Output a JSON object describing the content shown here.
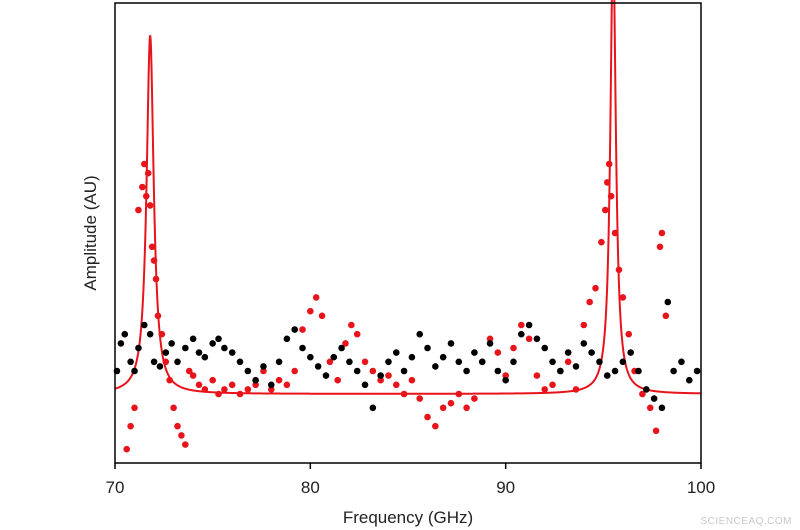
{
  "chart_data": {
    "type": "scatter",
    "title": "",
    "xlabel": "Frequency (GHz)",
    "ylabel": "Amplitude (AU)",
    "xlim": [
      70,
      100
    ],
    "ylim": [
      0,
      1
    ],
    "x_ticks": [
      70,
      80,
      90,
      100
    ],
    "x_tick_labels": [
      "70",
      "80",
      "90",
      "100"
    ],
    "y_ticks_shown": false,
    "grid": false,
    "legend": "none",
    "colors": {
      "red": "#e8141b",
      "black": "#000000",
      "frame": "#000000"
    },
    "series": [
      {
        "kind": "scatter",
        "color": "red",
        "points": [
          [
            70.6,
            0.03
          ],
          [
            70.8,
            0.08
          ],
          [
            71.0,
            0.12
          ],
          [
            71.2,
            0.55
          ],
          [
            71.4,
            0.6
          ],
          [
            71.5,
            0.65
          ],
          [
            71.6,
            0.58
          ],
          [
            71.7,
            0.63
          ],
          [
            71.8,
            0.56
          ],
          [
            71.9,
            0.47
          ],
          [
            72.0,
            0.44
          ],
          [
            72.1,
            0.4
          ],
          [
            72.2,
            0.32
          ],
          [
            72.4,
            0.28
          ],
          [
            72.6,
            0.22
          ],
          [
            72.8,
            0.18
          ],
          [
            73.0,
            0.12
          ],
          [
            73.2,
            0.08
          ],
          [
            73.4,
            0.06
          ],
          [
            73.6,
            0.04
          ],
          [
            73.8,
            0.2
          ],
          [
            74.0,
            0.19
          ],
          [
            74.3,
            0.17
          ],
          [
            74.6,
            0.16
          ],
          [
            75.0,
            0.18
          ],
          [
            75.3,
            0.15
          ],
          [
            75.6,
            0.16
          ],
          [
            76.0,
            0.17
          ],
          [
            76.4,
            0.15
          ],
          [
            76.8,
            0.16
          ],
          [
            77.2,
            0.17
          ],
          [
            77.6,
            0.2
          ],
          [
            78.0,
            0.16
          ],
          [
            78.4,
            0.18
          ],
          [
            78.8,
            0.17
          ],
          [
            79.2,
            0.2
          ],
          [
            79.6,
            0.29
          ],
          [
            80.0,
            0.33
          ],
          [
            80.3,
            0.36
          ],
          [
            80.6,
            0.32
          ],
          [
            81.0,
            0.22
          ],
          [
            81.4,
            0.18
          ],
          [
            81.8,
            0.26
          ],
          [
            82.1,
            0.3
          ],
          [
            82.4,
            0.28
          ],
          [
            82.8,
            0.22
          ],
          [
            83.2,
            0.2
          ],
          [
            83.6,
            0.18
          ],
          [
            84.0,
            0.19
          ],
          [
            84.4,
            0.17
          ],
          [
            84.8,
            0.15
          ],
          [
            85.2,
            0.18
          ],
          [
            85.6,
            0.14
          ],
          [
            86.0,
            0.1
          ],
          [
            86.4,
            0.08
          ],
          [
            86.8,
            0.12
          ],
          [
            87.2,
            0.13
          ],
          [
            87.6,
            0.15
          ],
          [
            88.0,
            0.12
          ],
          [
            88.4,
            0.14
          ],
          [
            88.8,
            0.22
          ],
          [
            89.2,
            0.27
          ],
          [
            89.6,
            0.24
          ],
          [
            90.0,
            0.19
          ],
          [
            90.4,
            0.25
          ],
          [
            90.8,
            0.3
          ],
          [
            91.2,
            0.27
          ],
          [
            91.6,
            0.19
          ],
          [
            92.0,
            0.16
          ],
          [
            92.4,
            0.17
          ],
          [
            92.8,
            0.2
          ],
          [
            93.2,
            0.22
          ],
          [
            93.6,
            0.16
          ],
          [
            94.0,
            0.3
          ],
          [
            94.3,
            0.35
          ],
          [
            94.6,
            0.38
          ],
          [
            94.9,
            0.48
          ],
          [
            95.1,
            0.55
          ],
          [
            95.2,
            0.61
          ],
          [
            95.3,
            0.65
          ],
          [
            95.4,
            0.58
          ],
          [
            95.6,
            0.5
          ],
          [
            95.8,
            0.42
          ],
          [
            96.0,
            0.36
          ],
          [
            96.3,
            0.28
          ],
          [
            96.6,
            0.2
          ],
          [
            97.0,
            0.15
          ],
          [
            97.4,
            0.12
          ],
          [
            97.7,
            0.07
          ],
          [
            97.9,
            0.47
          ],
          [
            98.0,
            0.5
          ],
          [
            98.2,
            0.32
          ]
        ]
      },
      {
        "kind": "scatter",
        "color": "black",
        "points": [
          [
            70.1,
            0.2
          ],
          [
            70.3,
            0.26
          ],
          [
            70.5,
            0.28
          ],
          [
            70.8,
            0.22
          ],
          [
            71.0,
            0.2
          ],
          [
            71.2,
            0.25
          ],
          [
            71.5,
            0.3
          ],
          [
            71.8,
            0.28
          ],
          [
            72.0,
            0.22
          ],
          [
            72.3,
            0.21
          ],
          [
            72.6,
            0.24
          ],
          [
            72.9,
            0.26
          ],
          [
            73.2,
            0.22
          ],
          [
            73.6,
            0.25
          ],
          [
            74.0,
            0.27
          ],
          [
            74.3,
            0.24
          ],
          [
            74.6,
            0.23
          ],
          [
            75.0,
            0.26
          ],
          [
            75.3,
            0.27
          ],
          [
            75.6,
            0.25
          ],
          [
            76.0,
            0.24
          ],
          [
            76.4,
            0.22
          ],
          [
            76.8,
            0.2
          ],
          [
            77.2,
            0.18
          ],
          [
            77.6,
            0.21
          ],
          [
            78.0,
            0.17
          ],
          [
            78.4,
            0.22
          ],
          [
            78.8,
            0.27
          ],
          [
            79.2,
            0.29
          ],
          [
            79.6,
            0.25
          ],
          [
            80.0,
            0.23
          ],
          [
            80.4,
            0.21
          ],
          [
            80.8,
            0.19
          ],
          [
            81.2,
            0.23
          ],
          [
            81.6,
            0.25
          ],
          [
            82.0,
            0.22
          ],
          [
            82.4,
            0.2
          ],
          [
            82.8,
            0.17
          ],
          [
            83.2,
            0.12
          ],
          [
            83.6,
            0.19
          ],
          [
            84.0,
            0.22
          ],
          [
            84.4,
            0.24
          ],
          [
            84.8,
            0.2
          ],
          [
            85.2,
            0.23
          ],
          [
            85.6,
            0.28
          ],
          [
            86.0,
            0.25
          ],
          [
            86.4,
            0.21
          ],
          [
            86.8,
            0.23
          ],
          [
            87.2,
            0.26
          ],
          [
            87.6,
            0.22
          ],
          [
            88.0,
            0.2
          ],
          [
            88.4,
            0.24
          ],
          [
            88.8,
            0.22
          ],
          [
            89.2,
            0.26
          ],
          [
            89.6,
            0.2
          ],
          [
            90.0,
            0.18
          ],
          [
            90.4,
            0.22
          ],
          [
            90.8,
            0.28
          ],
          [
            91.2,
            0.3
          ],
          [
            91.6,
            0.27
          ],
          [
            92.0,
            0.25
          ],
          [
            92.4,
            0.22
          ],
          [
            92.8,
            0.2
          ],
          [
            93.2,
            0.24
          ],
          [
            93.6,
            0.21
          ],
          [
            94.0,
            0.26
          ],
          [
            94.4,
            0.24
          ],
          [
            94.8,
            0.22
          ],
          [
            95.2,
            0.19
          ],
          [
            95.6,
            0.2
          ],
          [
            96.0,
            0.22
          ],
          [
            96.4,
            0.24
          ],
          [
            96.8,
            0.2
          ],
          [
            97.2,
            0.16
          ],
          [
            97.6,
            0.14
          ],
          [
            98.0,
            0.12
          ],
          [
            98.3,
            0.35
          ],
          [
            98.6,
            0.2
          ],
          [
            99.0,
            0.22
          ],
          [
            99.4,
            0.18
          ],
          [
            99.8,
            0.2
          ]
        ]
      },
      {
        "kind": "line",
        "color": "red",
        "model": "lorentzian",
        "baseline": 0.15,
        "peaks": [
          {
            "center": 71.8,
            "height": 0.78,
            "hwhm": 0.22
          },
          {
            "center": 95.5,
            "height": 0.98,
            "hwhm": 0.17
          }
        ]
      }
    ]
  },
  "watermark": "SCIENCEAQ.COM"
}
